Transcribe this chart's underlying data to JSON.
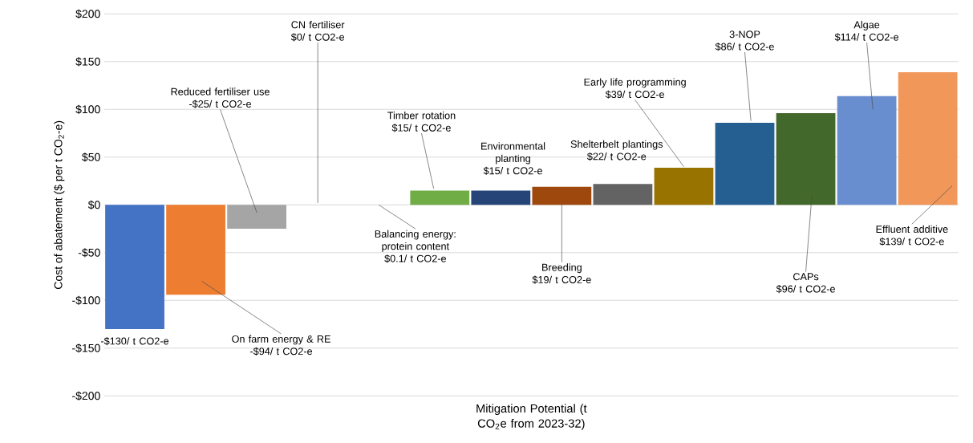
{
  "chart_data": {
    "type": "bar",
    "ylabel": "Cost of abatement ($ per t CO$_{2}$-e)",
    "xlabel": "Mitigation Potential (t CO$_{2}$e from 2023-32)",
    "categories": [
      null,
      null,
      null,
      null,
      null,
      null,
      null,
      null,
      null,
      null,
      null,
      null,
      null,
      null
    ],
    "annotations": [
      "-$130/ t CO2-e",
      "On farm energy & RE",
      "-$94/ t CO2-e",
      "Reduced fertiliser use",
      "-$25/ t CO2-e",
      "CN fertiliser",
      "$0/ t CO2-e",
      "Balancing energy: protein content",
      "$0.1/ t CO2-e",
      "Timber rotation",
      "$15/ t CO2-e",
      "Environmental planting",
      "$15/ t CO2-e",
      "Breeding",
      "$19/ t CO2-e",
      "Shelterbelt plantings",
      "$22/ t CO2-e",
      "Early life programming",
      "$39/ t CO2-e",
      "3-NOP",
      "$86/ t CO2-e",
      "CAPs",
      "$96/ t CO2-e",
      "Algae",
      "$114/ t CO2-e",
      "Effluent additive",
      "$139/ t CO2-e"
    ],
    "values": [
      -130,
      -94,
      -25,
      0,
      0.1,
      15,
      15,
      19,
      22,
      39,
      86,
      96,
      114,
      139
    ],
    "colors": [
      "#4472c4",
      "#ed7d31",
      "#a5a5a5",
      "#ffc000",
      "#5b9bd5",
      "#70ad47",
      "#264478",
      "#9e480e",
      "#636363",
      "#997300",
      "#255e91",
      "#43682b",
      "#698ed0",
      "#f1975a"
    ],
    "ylim": [
      -200,
      200
    ],
    "yticks": [
      {
        "value": -200,
        "label": "-$200"
      },
      {
        "value": -150,
        "label": "-$150"
      },
      {
        "value": -100,
        "label": "-$100"
      },
      {
        "value": -50,
        "label": "-$50"
      },
      {
        "value": 0,
        "label": "$0"
      },
      {
        "value": 50,
        "label": "$50"
      },
      {
        "value": 100,
        "label": "$100"
      },
      {
        "value": 150,
        "label": "$150"
      },
      {
        "value": 200,
        "label": "$200"
      }
    ],
    "grid": "y"
  }
}
